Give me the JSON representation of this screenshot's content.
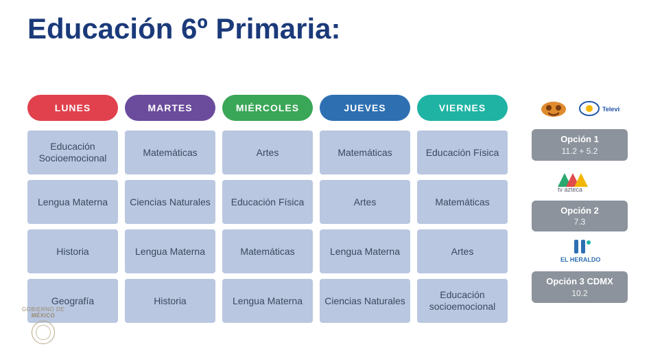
{
  "title": {
    "text": "Educación 6º Primaria:",
    "color": "#1b3a7a",
    "fontsize": 42
  },
  "days": [
    {
      "label": "LUNES",
      "color": "#e0414d"
    },
    {
      "label": "MARTES",
      "color": "#6a4b9c"
    },
    {
      "label": "MIÉRCOLES",
      "color": "#3aa657"
    },
    {
      "label": "JUEVES",
      "color": "#2e6fb2"
    },
    {
      "label": "VIERNES",
      "color": "#1fb3a3"
    }
  ],
  "rows": [
    [
      "Educación Socioemocional",
      "Matemáticas",
      "Artes",
      "Matemáticas",
      "Educación Física"
    ],
    [
      "Lengua Materna",
      "Ciencias Naturales",
      "Educación Física",
      "Artes",
      "Matemáticas"
    ],
    [
      "Historia",
      "Lengua Materna",
      "Matemáticas",
      "Lengua Materna",
      "Artes"
    ],
    [
      "Geografía",
      "Historia",
      "Lengua Materna",
      "Ciencias Naturales",
      "Educación socioemocional"
    ]
  ],
  "cell_style": {
    "bg": "#b9c7e0",
    "text_color": "#384a5e",
    "fontsize": 14
  },
  "sidebar": {
    "box_bg": "#8c939c",
    "options": [
      {
        "title": "Opción 1",
        "sub": "11.2  +  5.2",
        "logos": [
          "once-ninos",
          "televisa"
        ]
      },
      {
        "title": "Opción 2",
        "sub": "7.3",
        "logos": [
          "tv-azteca"
        ]
      },
      {
        "title": "Opción 3 CDMX",
        "sub": "10.2",
        "logos": [
          "el-heraldo"
        ]
      }
    ]
  },
  "footer_logo": {
    "line1": "GOBIERNO DE",
    "line2": "MÉXICO"
  }
}
